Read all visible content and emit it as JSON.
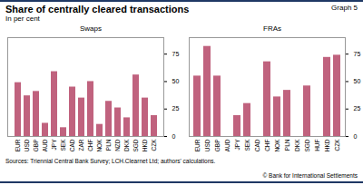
{
  "header": {
    "title": "Share of centrally cleared transactions",
    "subtitle": "In per cent",
    "label": "Graph 5"
  },
  "footer": {
    "sources": "Sources: Triennial Central Bank Survey; LCH.Clearnet Ltd; authors' calculations.",
    "copyright": "© Bank for International Settlements"
  },
  "chart_data": [
    {
      "type": "bar",
      "title": "Swaps",
      "categories": [
        "EUR",
        "USD",
        "GBP",
        "AUD",
        "JPY",
        "SEK",
        "CAD",
        "ZAR",
        "CHF",
        "NOK",
        "PLN",
        "NZD",
        "DKK",
        "SGD",
        "HKD",
        "CZK"
      ],
      "values": [
        49,
        37,
        41,
        12,
        59,
        8,
        45,
        35,
        50,
        11,
        32,
        26,
        17,
        56,
        35,
        19
      ],
      "color": "#c0627e",
      "ylim": [
        0,
        90
      ],
      "yticks": [
        0,
        25,
        50,
        75
      ],
      "grid": false
    },
    {
      "type": "bar",
      "title": "FRAs",
      "categories": [
        "EUR",
        "USD",
        "GBP",
        "AUD",
        "JPY",
        "SEK",
        "CAD",
        "CHF",
        "NOK",
        "PLN",
        "DKK",
        "SGD",
        "HUF",
        "HKD",
        "CZK"
      ],
      "values": [
        55,
        82,
        55,
        0,
        19,
        30,
        0,
        68,
        36,
        42,
        0,
        46,
        0,
        72,
        74
      ],
      "color": "#c0627e",
      "ylim": [
        0,
        90
      ],
      "yticks": [
        0,
        25,
        50,
        75
      ],
      "grid": false
    }
  ]
}
